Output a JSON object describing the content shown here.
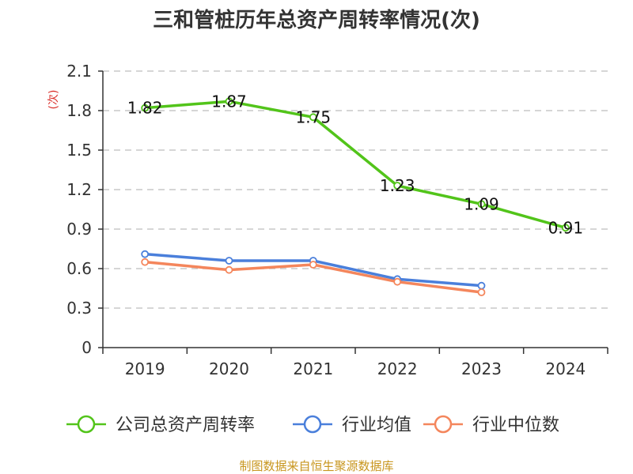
{
  "chart_data": {
    "type": "line",
    "title": "三和管桩历年总资产周转率情况(次)",
    "ylabel": "(次)",
    "xlabel": "",
    "categories": [
      "2019",
      "2020",
      "2021",
      "2022",
      "2023",
      "2024"
    ],
    "ylim": [
      0,
      2.1
    ],
    "yticks": [
      "0",
      "0.3",
      "0.6",
      "0.9",
      "1.2",
      "1.5",
      "1.8",
      "2.1"
    ],
    "grid": true,
    "legend_position": "bottom",
    "series": [
      {
        "name": "公司总资产周转率",
        "values": [
          1.82,
          1.87,
          1.75,
          1.23,
          1.09,
          0.91
        ],
        "labels": [
          "1.82",
          "1.87",
          "1.75",
          "1.23",
          "1.09",
          "0.91"
        ],
        "color": "#52c41a"
      },
      {
        "name": "行业均值",
        "values": [
          0.71,
          0.66,
          0.66,
          0.52,
          0.47,
          null
        ],
        "color": "#4a7fdb"
      },
      {
        "name": "行业中位数",
        "values": [
          0.65,
          0.59,
          0.63,
          0.5,
          0.42,
          null
        ],
        "color": "#f4865c"
      }
    ]
  },
  "source": "制图数据来自恒生聚源数据库",
  "colors": {
    "axis": "#333333",
    "grid": "#c8c8c8",
    "source": "#c8961e",
    "ylabel": "#d9302b"
  }
}
